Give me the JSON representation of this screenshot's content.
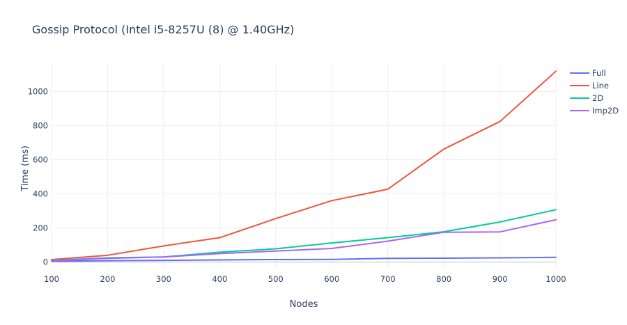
{
  "chart_data": {
    "type": "line",
    "title": "Gossip Protocol (Intel i5-8257U (8) @ 1.40GHz)",
    "xlabel": "Nodes",
    "ylabel": "Time (ms)",
    "x": [
      100,
      200,
      300,
      400,
      500,
      600,
      700,
      800,
      900,
      1000
    ],
    "xlim": [
      100,
      1000
    ],
    "ylim": [
      -30,
      1160
    ],
    "xticks": [
      100,
      200,
      300,
      400,
      500,
      600,
      700,
      800,
      900,
      1000
    ],
    "yticks": [
      0,
      200,
      400,
      600,
      800,
      1000
    ],
    "grid": true,
    "legend_position": "top-right",
    "series": [
      {
        "name": "Full",
        "color": "#636efa",
        "values": [
          5,
          8,
          10,
          13,
          15,
          16,
          22,
          23,
          25,
          28
        ]
      },
      {
        "name": "Line",
        "color": "#ef553b",
        "values": [
          15,
          40,
          95,
          143,
          255,
          360,
          427,
          662,
          823,
          1118
        ]
      },
      {
        "name": "2D",
        "color": "#00cc96",
        "values": [
          10,
          25,
          30,
          58,
          78,
          112,
          143,
          178,
          235,
          307
        ]
      },
      {
        "name": "Imp2D",
        "color": "#ab63fa",
        "values": [
          8,
          22,
          30,
          50,
          65,
          80,
          123,
          175,
          177,
          248
        ]
      }
    ]
  }
}
